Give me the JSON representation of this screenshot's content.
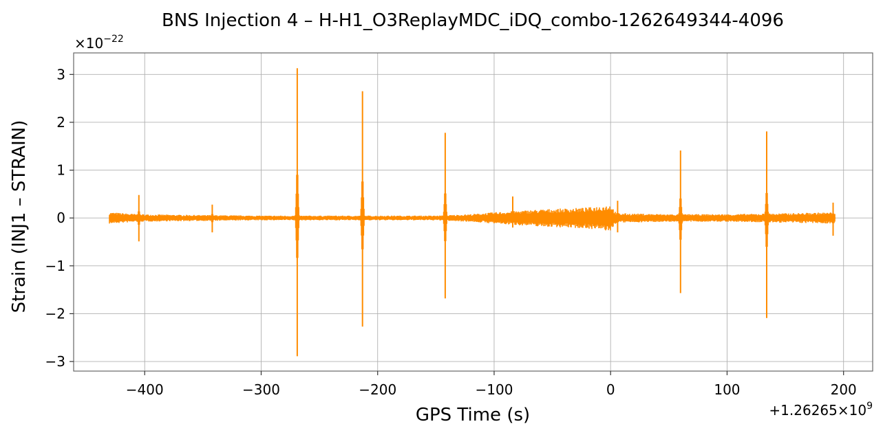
{
  "chart_data": {
    "type": "line",
    "title": "BNS Injection 4 – H-H1_O3ReplayMDC_iDQ_combo-1262649344-4096",
    "xlabel": "GPS Time (s)",
    "ylabel": "Strain (INJ1 – STRAIN)",
    "y_multiplier_label": {
      "base": "×10",
      "exp": "−22"
    },
    "x_offset_label": {
      "base": "+1.26265×10",
      "exp": "9"
    },
    "xlim": [
      -461,
      225
    ],
    "ylim": [
      -3.2,
      3.45
    ],
    "x_ticks": [
      -400,
      -300,
      -200,
      -100,
      0,
      100,
      200
    ],
    "x_tick_labels": [
      "−400",
      "−300",
      "−200",
      "−100",
      "0",
      "100",
      "200"
    ],
    "y_ticks": [
      -3,
      -2,
      -1,
      0,
      1,
      2,
      3
    ],
    "y_tick_labels": [
      "−3",
      "−2",
      "−1",
      "0",
      "1",
      "2",
      "3"
    ],
    "grid": true,
    "line_color": "#ff8c00",
    "series": [
      {
        "x_start": -430,
        "x_end": 193,
        "noise_envelope": [
          [
            -430,
            0.12
          ],
          [
            -405,
            0.08
          ],
          [
            -380,
            0.07
          ],
          [
            -340,
            0.06
          ],
          [
            -300,
            0.05
          ],
          [
            -250,
            0.05
          ],
          [
            -200,
            0.05
          ],
          [
            -150,
            0.05
          ],
          [
            -120,
            0.08
          ],
          [
            -100,
            0.12
          ],
          [
            -80,
            0.15
          ],
          [
            -60,
            0.18
          ],
          [
            -40,
            0.2
          ],
          [
            -20,
            0.22
          ],
          [
            0,
            0.28
          ],
          [
            5,
            0.1
          ],
          [
            50,
            0.08
          ],
          [
            100,
            0.08
          ],
          [
            150,
            0.1
          ],
          [
            193,
            0.12
          ]
        ],
        "glitches": [
          {
            "x": -405,
            "max": 0.48,
            "min": -0.49
          },
          {
            "x": -342,
            "max": 0.28,
            "min": -0.3
          },
          {
            "x": -269,
            "max": 3.13,
            "min": -2.89
          },
          {
            "x": -213,
            "max": 2.65,
            "min": -2.27
          },
          {
            "x": -142,
            "max": 1.78,
            "min": -1.68
          },
          {
            "x": -84,
            "max": 0.45,
            "min": -0.2
          },
          {
            "x": 6,
            "max": 0.36,
            "min": -0.3
          },
          {
            "x": 60,
            "max": 1.41,
            "min": -1.57
          },
          {
            "x": 134,
            "max": 1.81,
            "min": -2.09
          },
          {
            "x": 191,
            "max": 0.32,
            "min": -0.37
          }
        ]
      }
    ]
  }
}
